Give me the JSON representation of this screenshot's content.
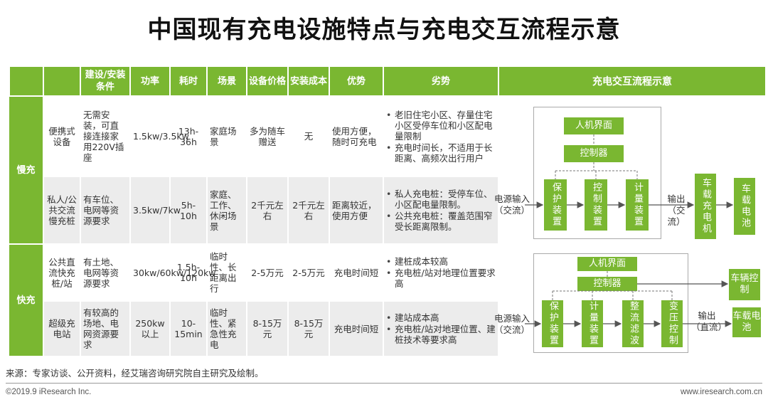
{
  "title": "中国现有充电设施特点与充电交互流程示意",
  "table": {
    "headers": [
      "",
      "",
      "建设/安装条件",
      "功率",
      "耗时",
      "场景",
      "设备价格",
      "安装成本",
      "优势",
      "劣势"
    ],
    "categories": [
      "慢充",
      "快充"
    ],
    "rows": [
      {
        "type": "便携式设备",
        "condition": "无需安装，可直接连接家用220V插座",
        "power": "1.5kw/3.5kw",
        "time": "13h-36h",
        "scene": "家庭场景",
        "price": "多为随车赠送",
        "install": "无",
        "advantage": "使用方便，随时可充电",
        "disadvantages": [
          "老旧住宅小区、存量住宅小区受停车位和小区配电量限制",
          "充电时间长，不适用于长距离、高频次出行用户"
        ]
      },
      {
        "type": "私人/公共交流慢充桩",
        "condition": "有车位、电网等资源要求",
        "power": "3.5kw/7kw",
        "time": "5h-10h",
        "scene": "家庭、工作、休闲场景",
        "price": "2千元左右",
        "install": "2千元左右",
        "advantage": "距离较近，使用方便",
        "disadvantages": [
          "私人充电桩：受停车位、小区配电量限制。",
          "公共充电桩：覆盖范围窄受长距离限制。"
        ]
      },
      {
        "type": "公共直流快充桩/站",
        "condition": "有土地、电网等资源要求",
        "power": "30kw/60kw/120kw",
        "time": "1.5h-10h",
        "scene": "临时性、长距离出行",
        "price": "2-5万元",
        "install": "2-5万元",
        "advantage": "充电时间短",
        "disadvantages": [
          "建桩成本较高",
          "充电桩/站对地理位置要求高"
        ]
      },
      {
        "type": "超级充电站",
        "condition": "有较高的场地、电网资源要求",
        "power": "250kw以上",
        "time": "10-15min",
        "scene": "临时性、紧急性充电",
        "price": "8-15万元",
        "install": "8-15万元",
        "advantage": "充电时间短",
        "disadvantages": [
          "建站成本高",
          "充电桩/站对地理位置、建桩技术等要求高"
        ]
      }
    ]
  },
  "flow": {
    "header": "充电交互流程示意",
    "slow": {
      "hmi": "人机界面",
      "controller": "控制器",
      "blocks": [
        "保护装置",
        "控制装置",
        "计量装置"
      ],
      "input": "电源输入（交流）",
      "output": "输出（交流）",
      "charger": "车载充电机",
      "battery": "车载电池"
    },
    "fast": {
      "hmi": "人机界面",
      "controller": "控制器",
      "vehicle_control": "车辆控制",
      "blocks": [
        "保护装置",
        "计量装置",
        "整流滤波",
        "变压控制"
      ],
      "input": "电源输入（交流）",
      "output": "输出（直流）",
      "battery": "车载电池"
    }
  },
  "footer": {
    "source": "来源：专家访谈、公开资料，经艾瑞咨询研究院自主研究及绘制。",
    "copyright": "©2019.9  iResearch Inc.",
    "site": "www.iresearch.com.cn"
  },
  "colors": {
    "accent": "#7ab731",
    "row_alt": "#ececec"
  }
}
